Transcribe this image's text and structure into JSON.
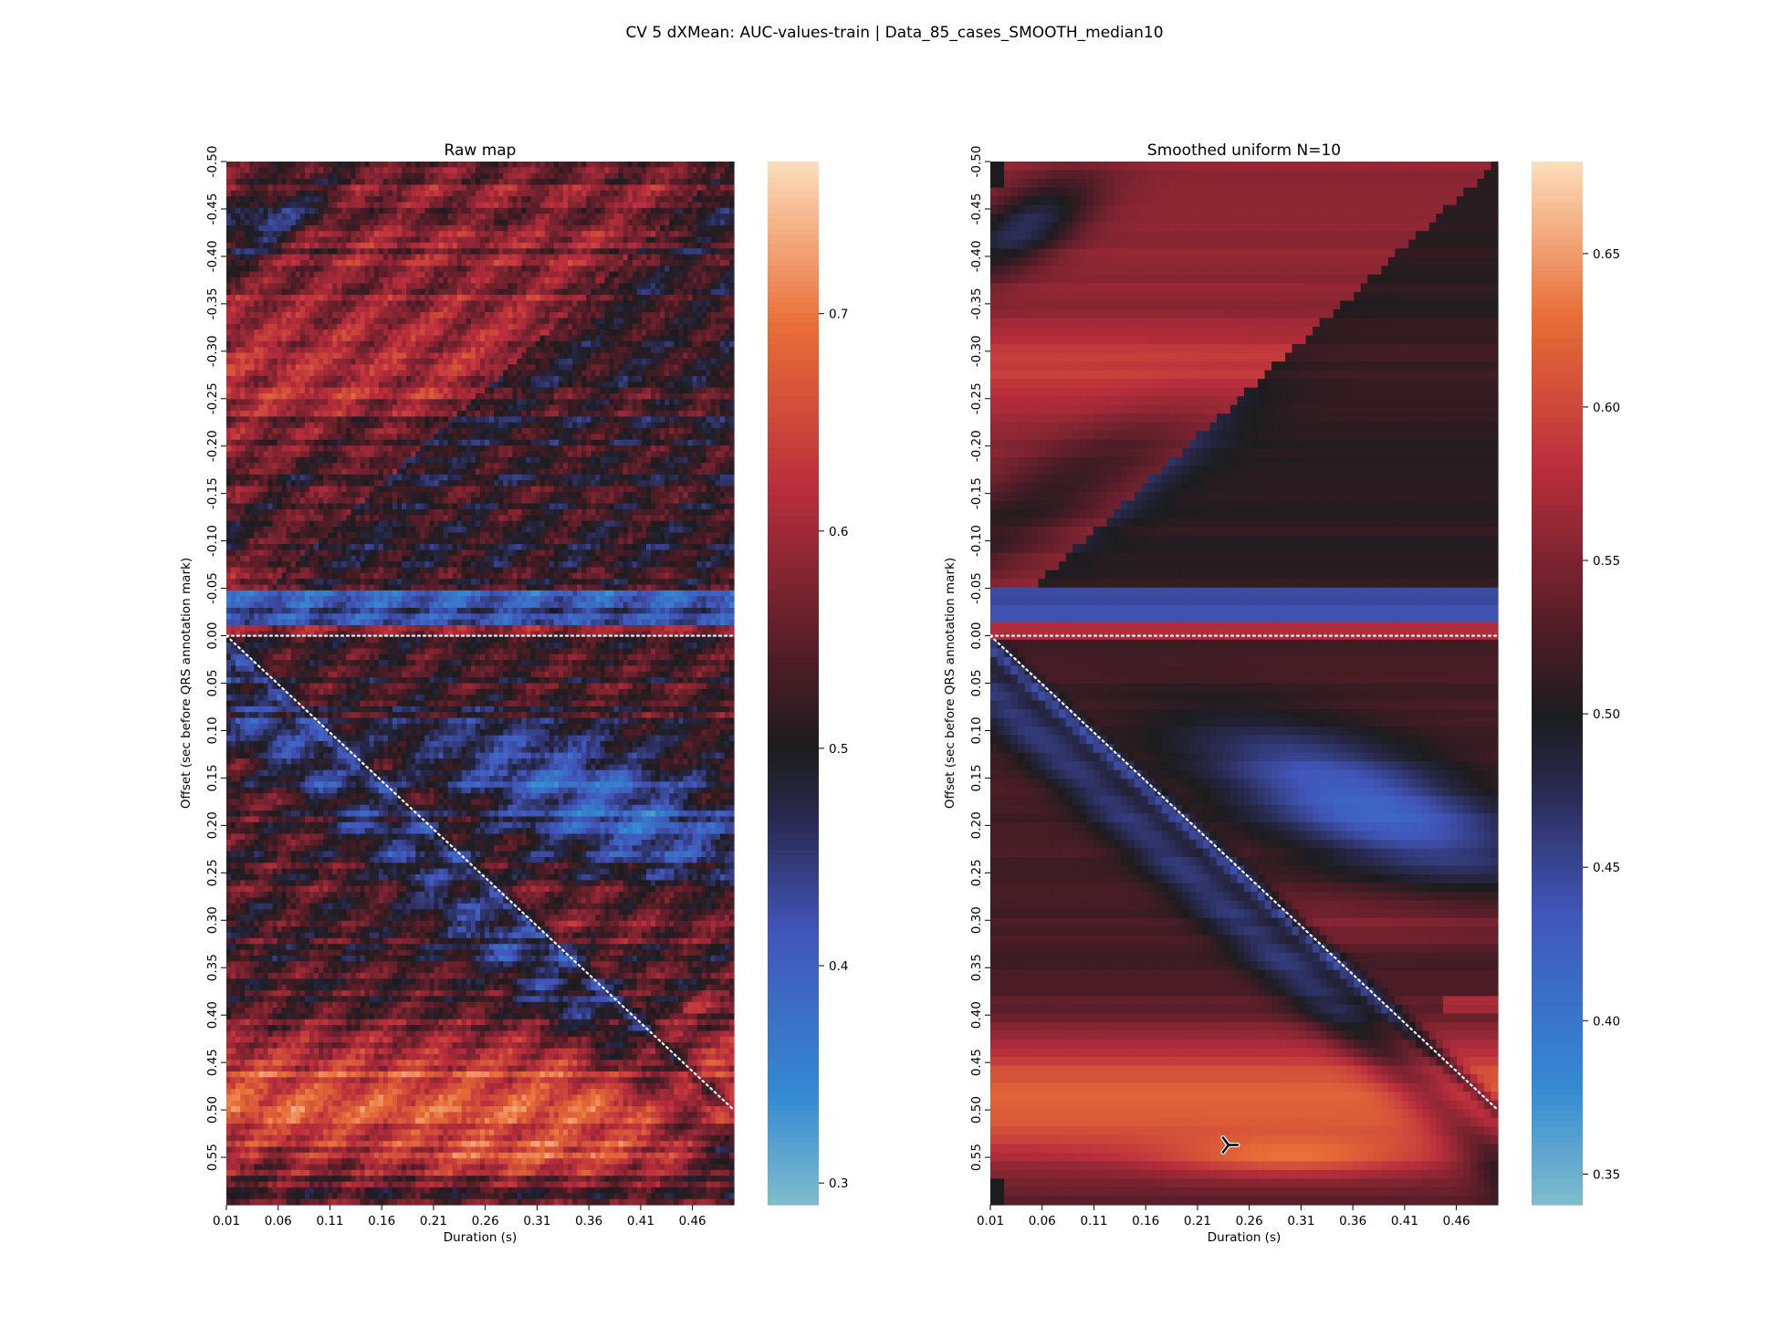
{
  "figure": {
    "title": "CV 5 dXMean: AUC-values-train | Data_85_cases_SMOOTH_median10"
  },
  "chart_data": [
    {
      "type": "heatmap",
      "title": "Raw map",
      "xlabel": "Duration (s)",
      "ylabel": "Offset (sec before QRS annotation mark)",
      "x_ticks": [
        "0.01",
        "0.06",
        "0.11",
        "0.16",
        "0.21",
        "0.26",
        "0.31",
        "0.36",
        "0.41",
        "0.46"
      ],
      "y_ticks": [
        "-0.50",
        "-0.45",
        "-0.40",
        "-0.35",
        "-0.30",
        "-0.25",
        "-0.20",
        "-0.15",
        "-0.10",
        "-0.05",
        "0.00",
        "0.05",
        "0.10",
        "0.15",
        "0.20",
        "0.25",
        "0.30",
        "0.35",
        "0.40",
        "0.45",
        "0.50",
        "0.55"
      ],
      "x_range": [
        0.01,
        0.5
      ],
      "y_range": [
        -0.5,
        0.6
      ],
      "colorbar": {
        "range": [
          0.29,
          0.77
        ],
        "ticks": [
          "0.3",
          "0.4",
          "0.5",
          "0.6",
          "0.7"
        ],
        "center": 0.5
      },
      "colormap": "icefire",
      "reference_lines": [
        "offset = 0 (horizontal dotted)",
        "offset = duration (diagonal dotted)"
      ],
      "regions": [
        {
          "description": "upper band above diagonal, offset -0.50 to -0.32",
          "approx_value": 0.6
        },
        {
          "description": "right side offset -0.32 to -0.25",
          "approx_value": 0.66
        },
        {
          "description": "diagonal band offset -0.20 to -0.05",
          "approx_value": 0.38
        },
        {
          "description": "row near offset -0.03",
          "approx_value": 0.4
        },
        {
          "description": "offset 0.00 to 0.01",
          "approx_value": 0.6
        },
        {
          "description": "right side offset 0.05 to 0.25",
          "approx_value": 0.35
        },
        {
          "description": "bottom band offset 0.38 to 0.58",
          "approx_value": 0.68
        },
        {
          "description": "peak near offset 0.55, duration 0.21-0.41",
          "approx_value": 0.76
        }
      ]
    },
    {
      "type": "heatmap",
      "title": "Smoothed uniform N=10",
      "xlabel": "Duration (s)",
      "ylabel": "Offset (sec before QRS annotation mark)",
      "x_ticks": [
        "0.01",
        "0.06",
        "0.11",
        "0.16",
        "0.21",
        "0.26",
        "0.31",
        "0.36",
        "0.41",
        "0.46"
      ],
      "y_ticks": [
        "-0.50",
        "-0.45",
        "-0.40",
        "-0.35",
        "-0.30",
        "-0.25",
        "-0.20",
        "-0.15",
        "-0.10",
        "-0.05",
        "0.00",
        "0.05",
        "0.10",
        "0.15",
        "0.20",
        "0.25",
        "0.30",
        "0.35",
        "0.40",
        "0.45",
        "0.50",
        "0.55"
      ],
      "x_range": [
        0.01,
        0.5
      ],
      "y_range": [
        -0.5,
        0.6
      ],
      "colorbar": {
        "range": [
          0.34,
          0.68
        ],
        "ticks": [
          "0.35",
          "0.40",
          "0.45",
          "0.50",
          "0.55",
          "0.60",
          "0.65"
        ],
        "center": 0.5
      },
      "colormap": "icefire",
      "reference_lines": [
        "offset = 0 (horizontal dotted)",
        "offset = duration (diagonal dotted)"
      ],
      "regions": [
        {
          "description": "upper right region offset -0.50 to -0.20",
          "approx_value": 0.6
        },
        {
          "description": "bright region offset -0.30 to -0.25, duration 0.31-0.50",
          "approx_value": 0.64
        },
        {
          "description": "blue band offset -0.20 to -0.02",
          "approx_value": 0.4
        },
        {
          "description": "blue region offset 0.05 to 0.25, duration 0.26-0.50",
          "approx_value": 0.37
        },
        {
          "description": "bottom band offset 0.40 to 0.58",
          "approx_value": 0.63
        },
        {
          "description": "peak near offset 0.54, duration 0.21-0.36",
          "approx_value": 0.67
        }
      ],
      "marker": {
        "duration": 0.24,
        "offset": 0.537
      }
    }
  ]
}
